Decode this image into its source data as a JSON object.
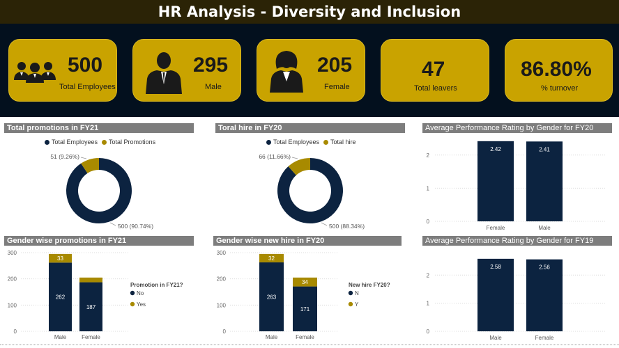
{
  "title": "HR Analysis - Diversity and Inclusion",
  "kpis": {
    "total_employees": {
      "value": "500",
      "label": "Total Employees"
    },
    "male": {
      "value": "295",
      "label": "Male"
    },
    "female": {
      "value": "205",
      "label": "Female"
    },
    "leavers": {
      "value": "47",
      "label": "Total leavers"
    },
    "turnover": {
      "value": "86.80%",
      "label": "% turnover"
    }
  },
  "colors": {
    "navy": "#0c2340",
    "gold": "#a88a00",
    "kpi_gold": "#c9a300",
    "band": "#03101e"
  },
  "chart_data": [
    {
      "id": "promo-donut",
      "type": "pie",
      "title": "Total promotions in FY21",
      "legend": [
        "Total Employees",
        "Total Promotions"
      ],
      "values": [
        500,
        51
      ],
      "labels": [
        "500 (90.74%)",
        "51 (9.26%)"
      ]
    },
    {
      "id": "hire-donut",
      "type": "pie",
      "title": "Toral hire in FY20",
      "legend": [
        "Total Employees",
        "Total hire"
      ],
      "values": [
        500,
        66
      ],
      "labels": [
        "500 (88.34%)",
        "66 (11.66%)"
      ]
    },
    {
      "id": "perf20",
      "type": "bar",
      "title": "Average Performance Rating by Gender for FY20",
      "categories": [
        "Female",
        "Male"
      ],
      "values": [
        2.42,
        2.41
      ],
      "ylim": [
        0,
        2.5
      ],
      "yticks": [
        "0",
        "1",
        "2"
      ]
    },
    {
      "id": "gender-promo",
      "type": "bar",
      "title": "Gender wise promotions in FY21",
      "categories": [
        "Male",
        "Female"
      ],
      "series": [
        {
          "name": "No",
          "values": [
            262,
            187
          ]
        },
        {
          "name": "Yes",
          "values": [
            33,
            18
          ]
        }
      ],
      "legend_title": "Promotion in FY21?",
      "ylim": [
        0,
        300
      ],
      "yticks": [
        "0",
        "100",
        "200",
        "300"
      ]
    },
    {
      "id": "gender-hire",
      "type": "bar",
      "title": "Gender wise new hire in FY20",
      "categories": [
        "Male",
        "Female"
      ],
      "series": [
        {
          "name": "N",
          "values": [
            263,
            171
          ]
        },
        {
          "name": "Y",
          "values": [
            32,
            34
          ]
        }
      ],
      "legend_title": "New hire FY20?",
      "ylim": [
        0,
        300
      ],
      "yticks": [
        "0",
        "100",
        "200",
        "300"
      ]
    },
    {
      "id": "perf19",
      "type": "bar",
      "title": "Average Performance Rating by Gender for FY19",
      "categories": [
        "Male",
        "Female"
      ],
      "values": [
        2.58,
        2.56
      ],
      "ylim": [
        0,
        2.7
      ],
      "yticks": [
        "0",
        "1",
        "2"
      ]
    }
  ]
}
